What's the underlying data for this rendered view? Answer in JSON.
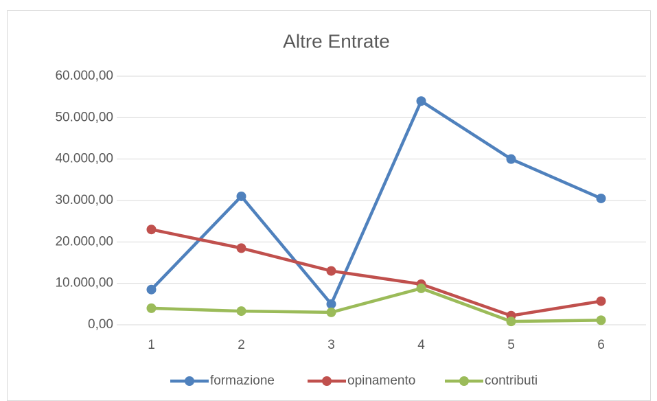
{
  "chart_data": {
    "type": "line",
    "title": "Altre Entrate",
    "categories": [
      "1",
      "2",
      "3",
      "4",
      "5",
      "6"
    ],
    "series": [
      {
        "name": "formazione",
        "color": "#4f81bd",
        "values": [
          8500,
          31000,
          5000,
          54000,
          40000,
          30500
        ]
      },
      {
        "name": "opinamento",
        "color": "#c0504d",
        "values": [
          23000,
          18500,
          13000,
          9800,
          2200,
          5700
        ]
      },
      {
        "name": "contributi",
        "color": "#9bbb59",
        "values": [
          4000,
          3300,
          3000,
          8800,
          800,
          1100
        ]
      }
    ],
    "ylim": [
      0,
      60000
    ],
    "yticks": [
      {
        "value": 0,
        "label": "0,00"
      },
      {
        "value": 10000,
        "label": "10.000,00"
      },
      {
        "value": 20000,
        "label": "20.000,00"
      },
      {
        "value": 30000,
        "label": "30.000,00"
      },
      {
        "value": 40000,
        "label": "40.000,00"
      },
      {
        "value": 50000,
        "label": "50.000,00"
      },
      {
        "value": 60000,
        "label": "60.000,00"
      }
    ],
    "grid": true,
    "legend": "bottom"
  }
}
